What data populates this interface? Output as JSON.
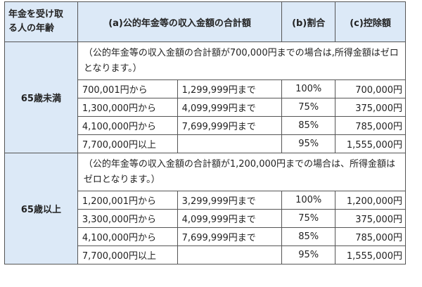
{
  "header": {
    "age_col_line1": "年金を受け取",
    "age_col_line2": "る人の年齢",
    "income_col": "(a)公的年金等の収入金額の合計額",
    "rate_col": "(b)割合",
    "deduction_col": "(c)控除額"
  },
  "groups": [
    {
      "age_label": "65歳未満",
      "note": "（公的年金等の収入金額の合計額が700,000円までの場合は,所得金額はゼロとなります。）",
      "rows": [
        {
          "from": "700,001円から",
          "to": "1,299,999円まで",
          "rate": "100%",
          "deduction": "700,000円"
        },
        {
          "from": "1,300,000円から",
          "to": "4,099,999円まで",
          "rate": "75%",
          "deduction": "375,000円"
        },
        {
          "from": "4,100,000円から",
          "to": "7,699,999円まで",
          "rate": "85%",
          "deduction": "785,000円"
        },
        {
          "from": "7,700,000円以上",
          "to": "",
          "rate": "95%",
          "deduction": "1,555,000円"
        }
      ]
    },
    {
      "age_label": "65歳以上",
      "note": "（公的年金等の収入金額の合計額が1,200,000円までの場合は、所得金額はゼロとなります。）",
      "rows": [
        {
          "from": "1,200,001円から",
          "to": "3,299,999円まで",
          "rate": "100%",
          "deduction": "1,200,000円"
        },
        {
          "from": "3,300,000円から",
          "to": "4,099,999円まで",
          "rate": "75%",
          "deduction": "375,000円"
        },
        {
          "from": "4,100,000円から",
          "to": "7,699,999円まで",
          "rate": "85%",
          "deduction": "785,000円"
        },
        {
          "from": "7,700,000円以上",
          "to": "",
          "rate": "95%",
          "deduction": "1,555,000円"
        }
      ]
    }
  ],
  "colors": {
    "header_bg": "#dce9f7",
    "border": "#555555",
    "text": "#222222"
  }
}
